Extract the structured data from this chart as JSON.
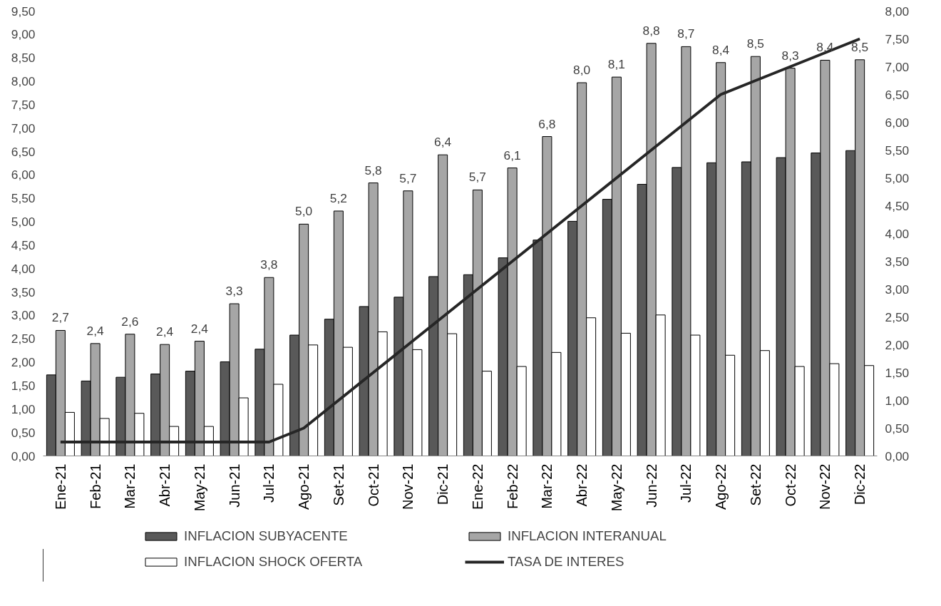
{
  "chart_data": {
    "type": "bar",
    "categories": [
      "Ene-21",
      "Feb-21",
      "Mar-21",
      "Abr-21",
      "May-21",
      "Jun-21",
      "Jul-21",
      "Ago-21",
      "Set-21",
      "Oct-21",
      "Nov-21",
      "Dic-21",
      "Ene-22",
      "Feb-22",
      "Mar-22",
      "Abr-22",
      "May-22",
      "Jun-22",
      "Jul-22",
      "Ago-22",
      "Set-22",
      "Oct-22",
      "Nov-22",
      "Dic-22"
    ],
    "series": [
      {
        "name": "INFLACION SUBYACENTE",
        "color": "#595959",
        "values": [
          1.73,
          1.6,
          1.68,
          1.75,
          1.81,
          2.01,
          2.28,
          2.58,
          2.92,
          3.19,
          3.39,
          3.83,
          3.87,
          4.23,
          4.61,
          5.01,
          5.48,
          5.8,
          6.16,
          6.26,
          6.28,
          6.37,
          6.47,
          6.52
        ]
      },
      {
        "name": "INFLACION INTERANUAL",
        "color": "#a6a6a6",
        "values": [
          2.68,
          2.4,
          2.6,
          2.38,
          2.45,
          3.25,
          3.81,
          4.95,
          5.23,
          5.83,
          5.66,
          6.43,
          5.68,
          6.15,
          6.82,
          7.97,
          8.09,
          8.81,
          8.74,
          8.4,
          8.53,
          8.28,
          8.45,
          8.46
        ],
        "value_labels": [
          "2,7",
          "2,4",
          "2,6",
          "2,4",
          "2,4",
          "3,3",
          "3,8",
          "5,0",
          "5,2",
          "5,8",
          "5,7",
          "6,4",
          "5,7",
          "6,1",
          "6,8",
          "8,0",
          "8,1",
          "8,8",
          "8,7",
          "8,4",
          "8,5",
          "8,3",
          "8,4",
          "8,5"
        ]
      },
      {
        "name": "INFLACION SHOCK OFERTA",
        "color": "#ffffff",
        "values": [
          0.93,
          0.8,
          0.91,
          0.63,
          0.63,
          1.24,
          1.53,
          2.37,
          2.32,
          2.65,
          2.27,
          2.61,
          1.81,
          1.91,
          2.21,
          2.95,
          2.62,
          3.01,
          2.58,
          2.15,
          2.25,
          1.91,
          1.97,
          1.93
        ]
      },
      {
        "name": "TASA DE INTERES",
        "type": "line",
        "axis": "y2",
        "color": "#262626",
        "values": [
          0.25,
          0.25,
          0.25,
          0.25,
          0.25,
          0.25,
          0.25,
          0.5,
          1.0,
          1.5,
          2.0,
          2.5,
          3.0,
          3.5,
          4.0,
          4.5,
          5.0,
          5.5,
          6.0,
          6.5,
          6.75,
          7.0,
          7.25,
          7.5
        ]
      }
    ],
    "ylim": [
      0,
      9.5
    ],
    "yticks": [
      {
        "value": 0,
        "label": "0,00"
      },
      {
        "value": 0.5,
        "label": "0,50"
      },
      {
        "value": 1,
        "label": "1,00"
      },
      {
        "value": 1.5,
        "label": "1,50"
      },
      {
        "value": 2,
        "label": "2,00"
      },
      {
        "value": 2.5,
        "label": "2,50"
      },
      {
        "value": 3,
        "label": "3,00"
      },
      {
        "value": 3.5,
        "label": "3,50"
      },
      {
        "value": 4,
        "label": "4,00"
      },
      {
        "value": 4.5,
        "label": "4,50"
      },
      {
        "value": 5,
        "label": "5,00"
      },
      {
        "value": 5.5,
        "label": "5,50"
      },
      {
        "value": 6,
        "label": "6,00"
      },
      {
        "value": 6.5,
        "label": "6,50"
      },
      {
        "value": 7,
        "label": "7,00"
      },
      {
        "value": 7.5,
        "label": "7,50"
      },
      {
        "value": 8,
        "label": "8,00"
      },
      {
        "value": 8.5,
        "label": "8,50"
      },
      {
        "value": 9,
        "label": "9,00"
      },
      {
        "value": 9.5,
        "label": "9,50"
      }
    ],
    "y2lim": [
      0,
      8
    ],
    "y2ticks": [
      {
        "value": 0,
        "label": "0,00"
      },
      {
        "value": 0.5,
        "label": "0,50"
      },
      {
        "value": 1,
        "label": "1,00"
      },
      {
        "value": 1.5,
        "label": "1,50"
      },
      {
        "value": 2,
        "label": "2,00"
      },
      {
        "value": 2.5,
        "label": "2,50"
      },
      {
        "value": 3,
        "label": "3,00"
      },
      {
        "value": 3.5,
        "label": "3,50"
      },
      {
        "value": 4,
        "label": "4,00"
      },
      {
        "value": 4.5,
        "label": "4,50"
      },
      {
        "value": 5,
        "label": "5,00"
      },
      {
        "value": 5.5,
        "label": "5,50"
      },
      {
        "value": 6,
        "label": "6,00"
      },
      {
        "value": 6.5,
        "label": "6,50"
      },
      {
        "value": 7,
        "label": "7,00"
      },
      {
        "value": 7.5,
        "label": "7,50"
      },
      {
        "value": 8,
        "label": "8,00"
      }
    ],
    "grid": false,
    "legend": "bottom"
  }
}
